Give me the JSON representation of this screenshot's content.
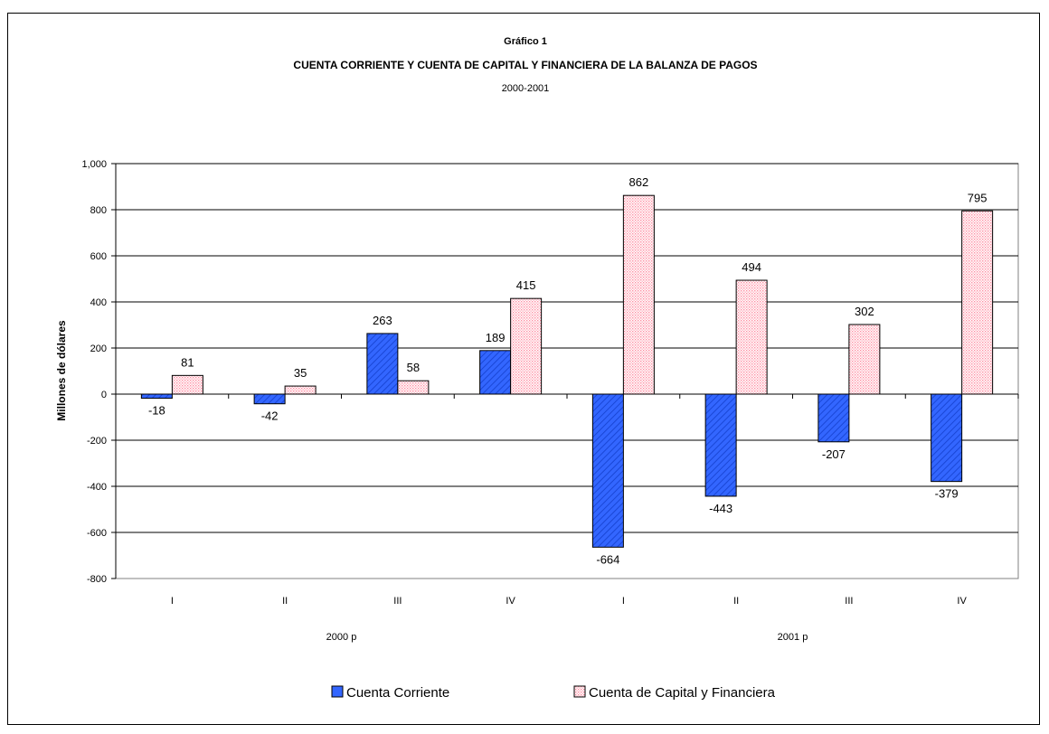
{
  "chart_data": {
    "type": "bar",
    "supertitle": "Gráfico 1",
    "title": "CUENTA CORRIENTE Y CUENTA DE CAPITAL Y FINANCIERA DE LA BALANZA DE PAGOS",
    "subtitle": "2000-2001",
    "ylabel": "Millones de dólares",
    "xlabel": "",
    "ylim": [
      -800,
      1000
    ],
    "y_ticks": [
      "1,000",
      "800",
      "600",
      "400",
      "200",
      "0",
      "-200",
      "-400",
      "-600",
      "-800"
    ],
    "y_tick_values": [
      1000,
      800,
      600,
      400,
      200,
      0,
      -200,
      -400,
      -600,
      -800
    ],
    "categories": [
      "I",
      "II",
      "III",
      "IV",
      "I",
      "II",
      "III",
      "IV"
    ],
    "groups": [
      {
        "label": "2000 p",
        "start": 0,
        "end": 3
      },
      {
        "label": "2001 p",
        "start": 4,
        "end": 7
      }
    ],
    "grid": true,
    "legend_position": "bottom",
    "series": [
      {
        "name": "Cuenta Corriente",
        "color": "#3366ff",
        "pattern": "diagonal-hatch",
        "values": [
          -18,
          -42,
          263,
          189,
          -664,
          -443,
          -207,
          -379
        ]
      },
      {
        "name": "Cuenta de Capital y Financiera",
        "color": "#ff99cc",
        "pattern": "dotted",
        "values": [
          81,
          35,
          58,
          415,
          862,
          494,
          302,
          795
        ]
      }
    ]
  }
}
